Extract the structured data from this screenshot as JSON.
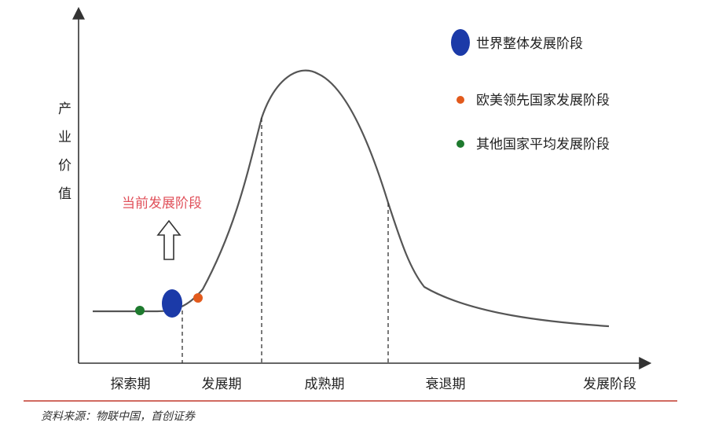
{
  "chart_data": {
    "type": "line",
    "ylabel": "产业价值",
    "xlabel": "发展阶段",
    "stages": [
      "探索期",
      "发展期",
      "成熟期",
      "衰退期"
    ],
    "legend": [
      {
        "label": "世界整体发展阶段",
        "color": "#1b3aa8"
      },
      {
        "label": "欧美领先国家发展阶段",
        "color": "#e25a1c"
      },
      {
        "label": "其他国家平均发展阶段",
        "color": "#1e7a2e"
      }
    ],
    "annotation": "当前发展阶段",
    "annotation_color": "#e0505a",
    "curve_color": "#555555"
  },
  "source": "资料来源：物联中国，首创证券"
}
